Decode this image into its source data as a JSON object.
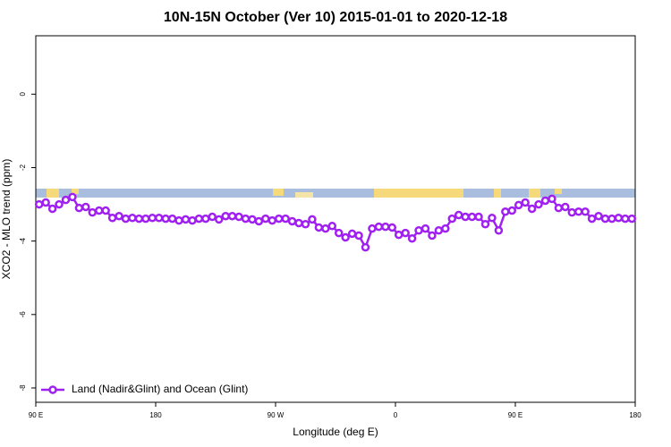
{
  "chart_data": {
    "type": "line",
    "title": "10N-15N October (Ver 10)   2015-01-01 to 2020-12-18",
    "x_label": "Longitude (deg E)",
    "y_label": "XCO2 - MLO trend (ppm)",
    "x": [
      92.5,
      97.5,
      102.5,
      107.5,
      112.5,
      117.5,
      122.5,
      127.5,
      132.5,
      137.5,
      142.5,
      147.5,
      152.5,
      157.5,
      162.5,
      167.5,
      172.5,
      177.5,
      182.5,
      187.5,
      192.5,
      197.5,
      202.5,
      207.5,
      212.5,
      217.5,
      222.5,
      227.5,
      232.5,
      237.5,
      242.5,
      247.5,
      252.5,
      257.5,
      262.5,
      267.5,
      272.5,
      277.5,
      282.5,
      287.5,
      292.5,
      297.5,
      302.5,
      307.5,
      312.5,
      317.5,
      322.5,
      327.5,
      332.5,
      337.5,
      342.5,
      347.5,
      352.5,
      357.5,
      362.5,
      367.5,
      372.5,
      377.5,
      382.5,
      387.5,
      392.5,
      397.5,
      402.5,
      407.5,
      412.5,
      417.5,
      422.5,
      427.5,
      432.5,
      437.5,
      442.5,
      447.5,
      452.5,
      457.5,
      462.5,
      467.5,
      472.5,
      477.5,
      482.5,
      487.5,
      492.5,
      497.5,
      502.5,
      507.5,
      512.5,
      517.5,
      522.5,
      527.5,
      532.5,
      537.5
    ],
    "series": [
      {
        "name": "Land (Nadir&Glint) and Ocean (Glint)",
        "color": "#a020f0",
        "values": [
          -3.0,
          -2.95,
          -3.12,
          -3.0,
          -2.88,
          -2.8,
          -3.1,
          -3.07,
          -3.22,
          -3.17,
          -3.17,
          -3.37,
          -3.32,
          -3.39,
          -3.37,
          -3.39,
          -3.39,
          -3.37,
          -3.37,
          -3.39,
          -3.39,
          -3.44,
          -3.41,
          -3.44,
          -3.39,
          -3.39,
          -3.34,
          -3.41,
          -3.32,
          -3.32,
          -3.34,
          -3.39,
          -3.41,
          -3.46,
          -3.39,
          -3.44,
          -3.39,
          -3.39,
          -3.46,
          -3.51,
          -3.54,
          -3.41,
          -3.63,
          -3.66,
          -3.59,
          -3.78,
          -3.9,
          -3.8,
          -3.85,
          -4.17,
          -3.66,
          -3.61,
          -3.61,
          -3.63,
          -3.83,
          -3.78,
          -3.93,
          -3.71,
          -3.66,
          -3.85,
          -3.71,
          -3.66,
          -3.39,
          -3.29,
          -3.34,
          -3.34,
          -3.34,
          -3.54,
          -3.37,
          -3.71,
          -3.2,
          -3.17,
          -3.02,
          -2.95,
          -3.12,
          -3.0,
          -2.9,
          -2.85,
          -3.1,
          -3.07,
          -3.22,
          -3.2,
          -3.2,
          -3.39,
          -3.32,
          -3.39,
          -3.39,
          -3.37,
          -3.39,
          -3.39
        ]
      }
    ],
    "xlim": [
      90,
      540
    ],
    "xticks": [
      {
        "value": 90,
        "label": "90 E"
      },
      {
        "value": 180,
        "label": "180"
      },
      {
        "value": 270,
        "label": "90 W"
      },
      {
        "value": 360,
        "label": "0"
      },
      {
        "value": 450,
        "label": "90 E"
      },
      {
        "value": 540,
        "label": "180"
      }
    ],
    "ylim": [
      -8.39,
      1.59
    ],
    "yticks": [
      0,
      -2,
      -4,
      -6,
      -8
    ],
    "legend": "bottom-left"
  }
}
